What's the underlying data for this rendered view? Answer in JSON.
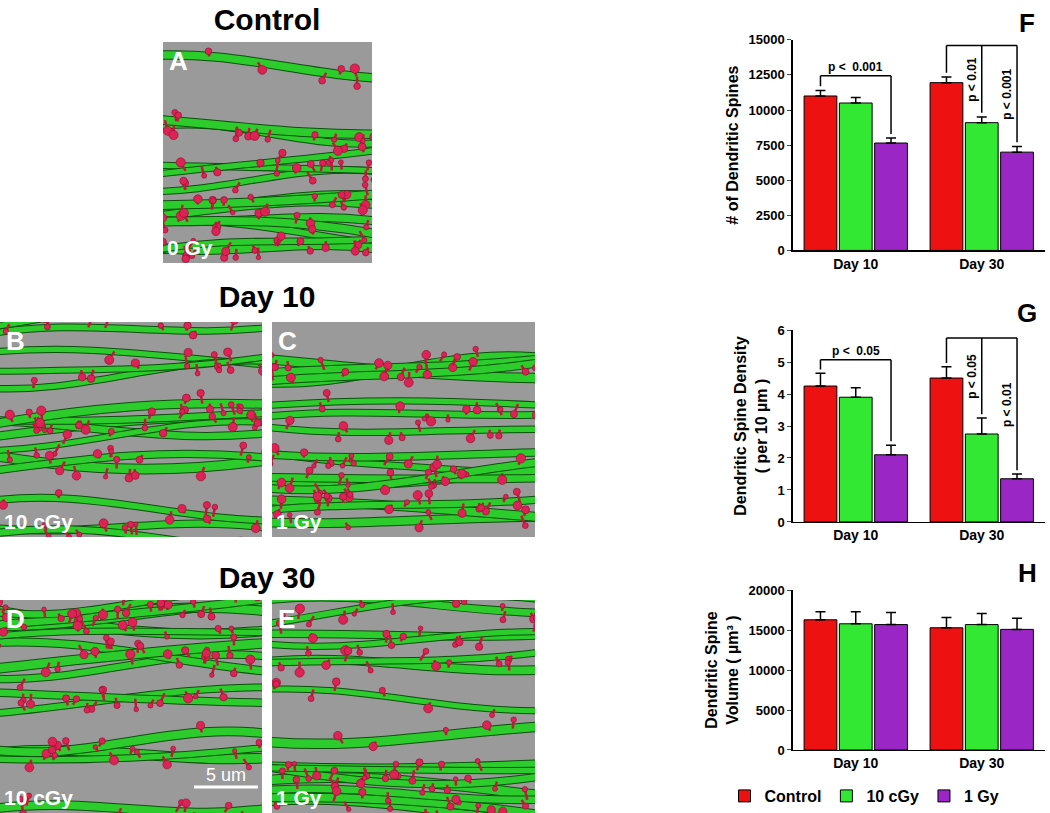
{
  "images": {
    "headings": [
      "Control",
      "Day 10",
      "Day 30"
    ],
    "panels": [
      {
        "label": "A",
        "caption": "0 Gy"
      },
      {
        "label": "B",
        "caption": "10 cGy"
      },
      {
        "label": "C",
        "caption": "1 Gy"
      },
      {
        "label": "D",
        "caption": "10 cGy"
      },
      {
        "label": "E",
        "caption": "1 Gy"
      }
    ],
    "scale_bar": {
      "panel": "D",
      "text": "5 um"
    }
  },
  "chart_data": [
    {
      "type": "bar",
      "title": "F",
      "y_label": [
        "# of Dendritic Spines"
      ],
      "categories": [
        "Day 10",
        "Day 30"
      ],
      "series": [
        {
          "name": "Control",
          "color": "#ee1111",
          "values": [
            11000,
            11950
          ],
          "errors": [
            400,
            400
          ]
        },
        {
          "name": "10 cGy",
          "color": "#33e833",
          "values": [
            10500,
            9100
          ],
          "errors": [
            400,
            400
          ]
        },
        {
          "name": "1 Gy",
          "color": "#9b26c6",
          "values": [
            7650,
            7000
          ],
          "errors": [
            350,
            400
          ]
        }
      ],
      "ylim": [
        0,
        15000
      ],
      "yticks": [
        0,
        2500,
        5000,
        7500,
        10000,
        12500,
        15000
      ],
      "annotations": [
        {
          "category": "Day 10",
          "from": "Control",
          "to": [
            "1 Gy"
          ],
          "texts": [
            "p <  0.001"
          ]
        },
        {
          "category": "Day 30",
          "from": "Control",
          "to": [
            "10 cGy",
            "1 Gy"
          ],
          "texts": [
            "p < 0.01",
            "p < 0.001"
          ]
        }
      ]
    },
    {
      "type": "bar",
      "title": "G",
      "y_label": [
        "Dendritic Spine Density",
        "( per 10 µm )"
      ],
      "categories": [
        "Day 10",
        "Day 30"
      ],
      "series": [
        {
          "name": "Control",
          "color": "#ee1111",
          "values": [
            4.25,
            4.5
          ],
          "errors": [
            0.4,
            0.35
          ]
        },
        {
          "name": "10 cGy",
          "color": "#33e833",
          "values": [
            3.9,
            2.75
          ],
          "errors": [
            0.3,
            0.5
          ]
        },
        {
          "name": "1 Gy",
          "color": "#9b26c6",
          "values": [
            2.1,
            1.35
          ],
          "errors": [
            0.3,
            0.15
          ]
        }
      ],
      "ylim": [
        0,
        6
      ],
      "yticks": [
        0,
        1,
        2,
        3,
        4,
        5,
        6
      ],
      "annotations": [
        {
          "category": "Day 10",
          "from": "Control",
          "to": [
            "1 Gy"
          ],
          "texts": [
            "p <  0.05"
          ]
        },
        {
          "category": "Day 30",
          "from": "Control",
          "to": [
            "10 cGy",
            "1 Gy"
          ],
          "texts": [
            "p < 0.05",
            "p < 0.01"
          ]
        }
      ]
    },
    {
      "type": "bar",
      "title": "H",
      "y_label": [
        "Dendritic Spine",
        "Volume ( µm³ )"
      ],
      "categories": [
        "Day 10",
        "Day 30"
      ],
      "series": [
        {
          "name": "Control",
          "color": "#ee1111",
          "values": [
            16300,
            15300
          ],
          "errors": [
            1000,
            1300
          ]
        },
        {
          "name": "10 cGy",
          "color": "#33e833",
          "values": [
            15800,
            15700
          ],
          "errors": [
            1500,
            1400
          ]
        },
        {
          "name": "1 Gy",
          "color": "#9b26c6",
          "values": [
            15700,
            15100
          ],
          "errors": [
            1500,
            1400
          ]
        }
      ],
      "ylim": [
        0,
        20000
      ],
      "yticks": [
        0,
        5000,
        10000,
        15000,
        20000
      ],
      "legend": "bottom",
      "annotations": []
    }
  ]
}
